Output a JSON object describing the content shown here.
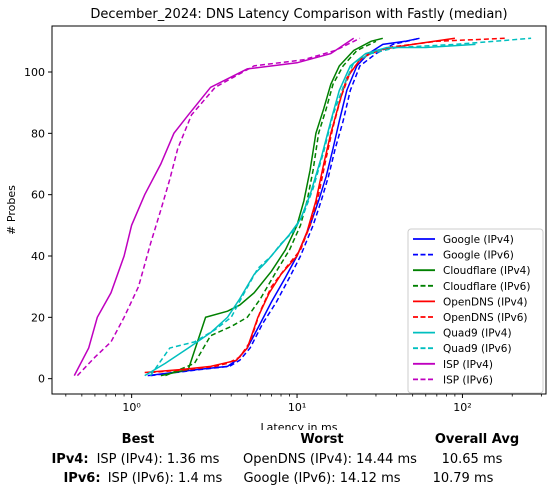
{
  "chart_data": {
    "type": "line",
    "title": "December_2024: DNS Latency Comparison with Fastly (median)",
    "xlabel": "Latency in ms",
    "ylabel": "# Probes",
    "xscale": "log",
    "xlim": [
      0.33,
      320
    ],
    "ylim": [
      -5,
      115
    ],
    "xticks": [
      {
        "value": 1,
        "label": "10⁰"
      },
      {
        "value": 10,
        "label": "10¹"
      },
      {
        "value": 100,
        "label": "10²"
      }
    ],
    "yticks": [
      0,
      20,
      40,
      60,
      80,
      100
    ],
    "grid": false,
    "legend_position": "lower-right",
    "series": [
      {
        "name": "Google (IPv4)",
        "color": "#0000ff",
        "dash": "solid",
        "x": [
          1.25,
          2.5,
          3.8,
          4.3,
          5.0,
          6.0,
          7.0,
          8.5,
          10,
          12,
          13.5,
          15,
          16.5,
          18,
          20,
          23,
          27,
          33,
          45,
          55
        ],
        "y": [
          1,
          3,
          4,
          6,
          10,
          18,
          25,
          33,
          40,
          50,
          58,
          66,
          75,
          84,
          94,
          102,
          106,
          109,
          110,
          111
        ]
      },
      {
        "name": "Google (IPv6)",
        "color": "#0000ff",
        "dash": "dashed",
        "x": [
          1.3,
          2.6,
          3.9,
          4.5,
          5.2,
          6.2,
          7.5,
          9.0,
          10.5,
          12.5,
          14,
          15.5,
          17,
          19,
          21,
          24,
          30,
          38,
          55
        ],
        "y": [
          1,
          3,
          4,
          6,
          10,
          18,
          25,
          33,
          40,
          50,
          58,
          66,
          75,
          84,
          94,
          102,
          106,
          109,
          111
        ]
      },
      {
        "name": "Cloudflare (IPv4)",
        "color": "#008000",
        "dash": "solid",
        "x": [
          1.5,
          2.2,
          2.8,
          3.8,
          4.5,
          5.5,
          7,
          8.5,
          10,
          11,
          12,
          13,
          14.5,
          16,
          18,
          22,
          28,
          33
        ],
        "y": [
          1,
          3,
          20,
          22,
          24,
          28,
          35,
          42,
          50,
          58,
          68,
          80,
          88,
          96,
          102,
          107,
          110,
          111
        ]
      },
      {
        "name": "Cloudflare (IPv6)",
        "color": "#008000",
        "dash": "dashed",
        "x": [
          1.6,
          2.4,
          3.0,
          4.0,
          5.0,
          6.0,
          7.5,
          9,
          10.5,
          11.5,
          12.5,
          13.5,
          15,
          16.5,
          19,
          23,
          30
        ],
        "y": [
          1,
          5,
          14,
          17,
          20,
          26,
          35,
          42,
          50,
          58,
          68,
          80,
          88,
          96,
          102,
          107,
          110
        ]
      },
      {
        "name": "OpenDNS (IPv4)",
        "color": "#ff0000",
        "dash": "solid",
        "x": [
          1.2,
          2.0,
          3.0,
          3.6,
          4.3,
          5.0,
          5.8,
          6.8,
          8,
          10,
          11.5,
          13,
          14.5,
          16,
          18,
          20,
          24,
          30,
          50,
          90
        ],
        "y": [
          2,
          3,
          4,
          5,
          6,
          10,
          20,
          28,
          34,
          40,
          48,
          58,
          70,
          80,
          90,
          98,
          104,
          107,
          109,
          111
        ]
      },
      {
        "name": "OpenDNS (IPv6)",
        "color": "#ff0000",
        "dash": "dashed",
        "x": [
          1.3,
          2.2,
          3.2,
          3.8,
          4.5,
          5.2,
          6.0,
          7.0,
          8.5,
          10.5,
          12,
          13.5,
          15,
          16.5,
          18.5,
          21,
          25,
          35,
          70,
          180
        ],
        "y": [
          2,
          3,
          4,
          5,
          7,
          12,
          22,
          30,
          36,
          42,
          50,
          60,
          72,
          82,
          92,
          100,
          105,
          108,
          110,
          111
        ]
      },
      {
        "name": "Quad9 (IPv4)",
        "color": "#00bfbf",
        "dash": "solid",
        "x": [
          1.2,
          1.6,
          2.2,
          3.0,
          3.8,
          4.5,
          5.5,
          6.5,
          7.5,
          9.0,
          10.5,
          12,
          14,
          16,
          18,
          21,
          26,
          35,
          60,
          120
        ],
        "y": [
          1,
          5,
          10,
          15,
          20,
          26,
          34,
          38,
          42,
          47,
          52,
          60,
          72,
          84,
          94,
          102,
          106,
          108,
          108,
          109
        ]
      },
      {
        "name": "Quad9 (IPv6)",
        "color": "#00bfbf",
        "dash": "dashed",
        "x": [
          1.3,
          1.7,
          2.4,
          3.2,
          4.0,
          4.8,
          5.8,
          7.0,
          8.0,
          9.5,
          11,
          12.5,
          14.5,
          16.5,
          19,
          22,
          28,
          40,
          90,
          260
        ],
        "y": [
          1,
          10,
          12,
          16,
          20,
          28,
          36,
          40,
          44,
          48,
          54,
          62,
          74,
          86,
          95,
          103,
          106,
          108,
          109,
          111
        ]
      },
      {
        "name": "ISP (IPv4)",
        "color": "#bf00bf",
        "dash": "solid",
        "x": [
          0.45,
          0.55,
          0.62,
          0.75,
          0.9,
          1.0,
          1.2,
          1.5,
          1.8,
          2.2,
          3.0,
          5.0,
          10,
          16,
          22
        ],
        "y": [
          1,
          10,
          20,
          28,
          40,
          50,
          60,
          70,
          80,
          86,
          95,
          101,
          103,
          106,
          111
        ]
      },
      {
        "name": "ISP (IPv6)",
        "color": "#bf00bf",
        "dash": "dashed",
        "x": [
          0.47,
          0.6,
          0.75,
          0.9,
          1.1,
          1.3,
          1.5,
          1.7,
          1.9,
          2.3,
          3.2,
          5.5,
          11,
          17,
          24
        ],
        "y": [
          1,
          7,
          12,
          20,
          30,
          44,
          55,
          65,
          75,
          86,
          95,
          102,
          104,
          107,
          111
        ]
      }
    ]
  },
  "summary": {
    "headers": {
      "best": "Best",
      "worst": "Worst",
      "avg": "Overall Avg"
    },
    "rows": [
      {
        "label": "IPv4:",
        "best": "ISP (IPv4): 1.36 ms",
        "worst": "OpenDNS (IPv4): 14.44 ms",
        "avg": "10.65 ms"
      },
      {
        "label": "IPv6:",
        "best": "ISP (IPv6): 1.4 ms",
        "worst": "Google (IPv6): 14.12 ms",
        "avg": "10.79 ms"
      }
    ]
  }
}
